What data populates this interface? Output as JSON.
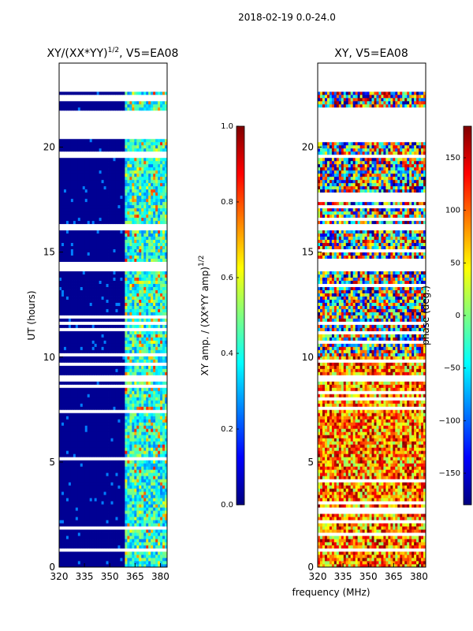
{
  "figure_title": "2018-02-19 0.0-24.0",
  "shared_xlabel": "frequency (MHz)",
  "colors": {
    "jet": [
      "#00007f",
      "#0000ff",
      "#007fff",
      "#00ffff",
      "#7fff7f",
      "#ffff00",
      "#ff7f00",
      "#ff0000",
      "#7f0000"
    ],
    "gap": "#ffffff",
    "axis": "#000000"
  },
  "chart_data": [
    {
      "type": "heatmap",
      "title_main": "XY/(XX*YY)",
      "title_exp": "1/2",
      "title_suffix": ", V5=EA08",
      "xlabel": "",
      "ylabel": "UT (hours)",
      "xlim": [
        320,
        384
      ],
      "ylim": [
        0,
        24
      ],
      "xticks": [
        320,
        335,
        350,
        365,
        380
      ],
      "yticks": [
        0,
        5,
        10,
        15,
        20
      ],
      "data_gaps_hours": [
        [
          22.6,
          24.0
        ],
        [
          21.0,
          21.8
        ],
        [
          20.4,
          21.0
        ],
        [
          19.5,
          19.7
        ],
        [
          16.0,
          16.4
        ],
        [
          14.1,
          14.5
        ],
        [
          11.5,
          11.7
        ],
        [
          8.9,
          9.1
        ],
        [
          0.7,
          0.9
        ]
      ],
      "colorbar": {
        "label_main": "XY amp. / (XX*YY amp)",
        "label_exp": "1/2",
        "range": [
          0.0,
          1.0
        ],
        "ticks": [
          "0.0",
          "0.2",
          "0.4",
          "0.6",
          "0.8",
          "1.0"
        ]
      }
    },
    {
      "type": "heatmap",
      "title_main": "XY, V5=EA08",
      "xlabel": "frequency (MHz)",
      "ylabel": "",
      "xlim": [
        320,
        384
      ],
      "ylim": [
        0,
        24
      ],
      "xticks": [
        320,
        335,
        350,
        365,
        380
      ],
      "yticks": [
        0,
        5,
        10,
        15,
        20
      ],
      "data_gaps_hours": [
        [
          22.6,
          24.0
        ],
        [
          21.0,
          21.8
        ],
        [
          20.4,
          21.0
        ],
        [
          19.5,
          19.7
        ],
        [
          16.0,
          16.4
        ],
        [
          14.1,
          14.5
        ],
        [
          11.5,
          11.7
        ],
        [
          8.9,
          9.1
        ],
        [
          0.7,
          0.9
        ]
      ],
      "colorbar": {
        "label_main": "phase (deg.)",
        "range": [
          -180,
          180
        ],
        "ticks": [
          "−150",
          "−100",
          "−50",
          "0",
          "50",
          "100",
          "150"
        ]
      }
    }
  ]
}
